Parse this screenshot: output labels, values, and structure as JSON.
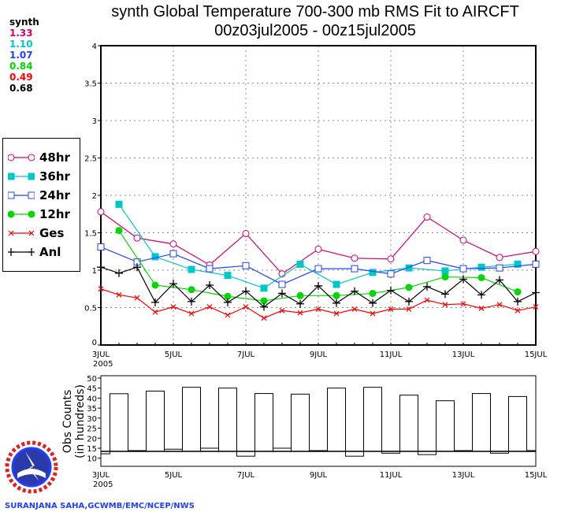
{
  "title_line1": "synth Global Temperature 700-300 mb RMS Fit to AIRCFT",
  "title_line2": "00z03jul2005 - 00z15jul2005",
  "stats": {
    "label": "synth",
    "values": [
      {
        "text": "1.33",
        "color": "#d4006a"
      },
      {
        "text": "1.10",
        "color": "#00c8c8"
      },
      {
        "text": "1.07",
        "color": "#2040ff"
      },
      {
        "text": "0.84",
        "color": "#00d800"
      },
      {
        "text": "0.49",
        "color": "#ff0000"
      },
      {
        "text": "0.68",
        "color": "#000000"
      }
    ]
  },
  "credit": "SURANJANA SAHA,GCWMB/EMC/NCEP/NWS",
  "logo_text": "NATIONAL WEATHER SERVICE",
  "chart_data": [
    {
      "type": "line",
      "x_ticks": [
        "3JUL",
        "5JUL",
        "7JUL",
        "9JUL",
        "11JUL",
        "13JUL",
        "15JUL"
      ],
      "x_year": "2005",
      "x_start": "2005-07-03 00z",
      "x_step_hours": 12,
      "ylim": [
        0,
        4
      ],
      "y_ticks": [
        "0",
        "0.5",
        "1",
        "1.5",
        "2",
        "2.5",
        "3",
        "3.5",
        "4"
      ],
      "grid": true,
      "legend": "left",
      "series": [
        {
          "name": "48hr",
          "color": "#d4006a",
          "marker": "open-circle",
          "start_index": 0,
          "step": 2,
          "values": [
            1.78,
            1.43,
            1.35,
            1.07,
            1.49,
            0.95,
            1.28,
            1.16,
            1.15,
            1.71,
            1.4,
            1.17,
            1.25
          ]
        },
        {
          "name": "36hr",
          "color": "#00c8c8",
          "marker": "filled-square",
          "start_index": 1,
          "step": 2,
          "values": [
            1.88,
            1.18,
            1.01,
            0.93,
            0.76,
            1.08,
            0.81,
            0.97,
            1.03,
            0.99,
            1.04,
            1.08
          ]
        },
        {
          "name": "24hr",
          "color": "#2040ff",
          "marker": "open-square",
          "start_index": 0,
          "step": 2,
          "values": [
            1.31,
            1.11,
            1.22,
            1.02,
            1.06,
            0.81,
            1.02,
            1.02,
            0.95,
            1.13,
            1.02,
            1.03,
            1.08
          ]
        },
        {
          "name": "12hr",
          "color": "#00d800",
          "marker": "filled-circle",
          "start_index": 1,
          "step": 2,
          "values": [
            1.53,
            0.8,
            0.74,
            0.65,
            0.59,
            0.66,
            0.66,
            0.69,
            0.77,
            0.91,
            0.9,
            0.71
          ]
        },
        {
          "name": "Ges",
          "color": "#ff0000",
          "marker": "x",
          "start_index": 0,
          "step": 1,
          "values": [
            0.75,
            0.67,
            0.63,
            0.44,
            0.51,
            0.42,
            0.51,
            0.4,
            0.51,
            0.36,
            0.46,
            0.43,
            0.48,
            0.42,
            0.48,
            0.42,
            0.48,
            0.48,
            0.6,
            0.54,
            0.55,
            0.49,
            0.54,
            0.46,
            0.51
          ]
        },
        {
          "name": "Anl",
          "color": "#000000",
          "marker": "plus",
          "start_index": 0,
          "step": 1,
          "values": [
            1.04,
            0.96,
            1.04,
            0.57,
            0.82,
            0.58,
            0.8,
            0.57,
            0.72,
            0.51,
            0.69,
            0.55,
            0.79,
            0.56,
            0.72,
            0.56,
            0.73,
            0.58,
            0.78,
            0.68,
            0.88,
            0.67,
            0.87,
            0.58,
            0.7
          ]
        }
      ]
    },
    {
      "type": "bar",
      "ylabel_line1": "Obs Counts",
      "ylabel_line2": "(in hundreds)",
      "x_ticks": [
        "3JUL",
        "5JUL",
        "7JUL",
        "9JUL",
        "11JUL",
        "13JUL",
        "15JUL"
      ],
      "x_year": "2005",
      "x_step_hours": 12,
      "ylim": [
        10,
        50
      ],
      "y_ticks": [
        "10",
        "15",
        "20",
        "25",
        "30",
        "35",
        "40",
        "45",
        "50"
      ],
      "baseline": 13.4,
      "values": [
        12.2,
        42.2,
        13.8,
        43.5,
        14.5,
        45.4,
        15.0,
        45.0,
        11.0,
        42.3,
        15.0,
        42.0,
        13.8,
        45.0,
        11.0,
        45.4,
        12.5,
        41.5,
        11.8,
        38.7,
        13.8,
        42.3,
        12.5,
        40.8,
        13.8
      ]
    }
  ]
}
